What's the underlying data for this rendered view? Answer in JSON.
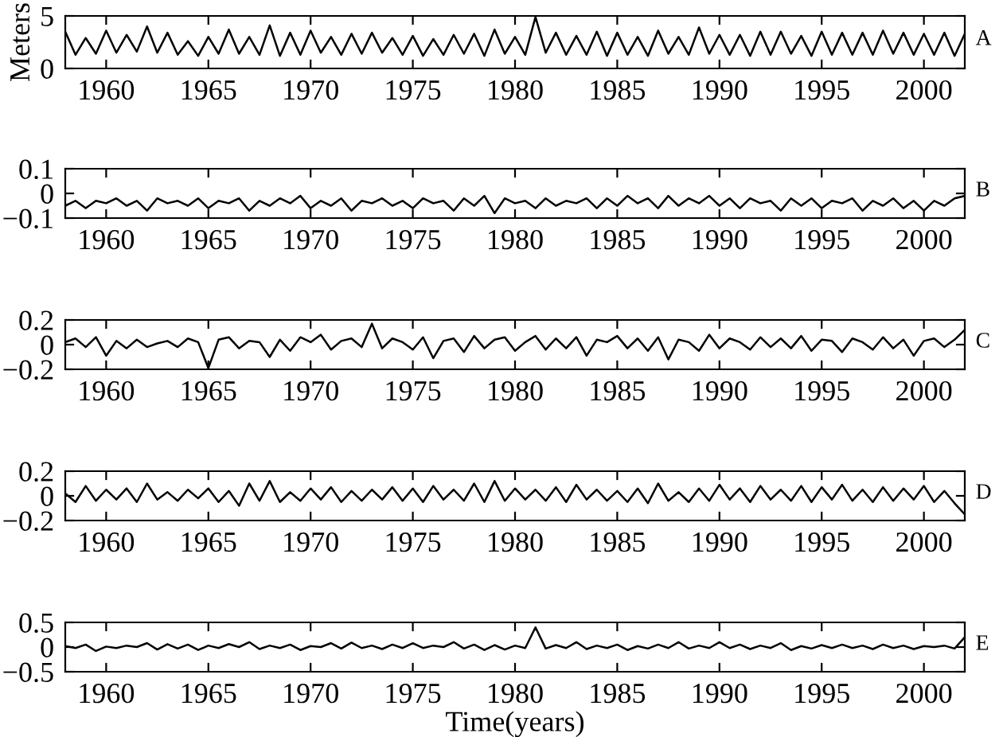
{
  "chart_data": [
    {
      "type": "line",
      "ylabel": "Meters",
      "annotations": [
        "A"
      ],
      "xlim": [
        1958,
        2002
      ],
      "xticks": [
        1960,
        1965,
        1970,
        1975,
        1980,
        1985,
        1990,
        1995,
        2000
      ],
      "ylim": [
        0,
        5
      ],
      "yticks": [
        0,
        5
      ],
      "grid": false,
      "legend": false,
      "x": [
        1958,
        1958.5,
        1959,
        1959.5,
        1960,
        1960.5,
        1961,
        1961.5,
        1962,
        1962.5,
        1963,
        1963.5,
        1964,
        1964.5,
        1965,
        1965.5,
        1966,
        1966.5,
        1967,
        1967.5,
        1968,
        1968.5,
        1969,
        1969.5,
        1970,
        1970.5,
        1971,
        1971.5,
        1972,
        1972.5,
        1973,
        1973.5,
        1974,
        1974.5,
        1975,
        1975.5,
        1976,
        1976.5,
        1977,
        1977.5,
        1978,
        1978.5,
        1979,
        1979.5,
        1980,
        1980.5,
        1981,
        1981.5,
        1982,
        1982.5,
        1983,
        1983.5,
        1984,
        1984.5,
        1985,
        1985.5,
        1986,
        1986.5,
        1987,
        1987.5,
        1988,
        1988.5,
        1989,
        1989.5,
        1990,
        1990.5,
        1991,
        1991.5,
        1992,
        1992.5,
        1993,
        1993.5,
        1994,
        1994.5,
        1995,
        1995.5,
        1996,
        1996.5,
        1997,
        1997.5,
        1998,
        1998.5,
        1999,
        1999.5,
        2000,
        2000.5,
        2001,
        2001.5,
        2002
      ],
      "series": [
        {
          "color": "#000000",
          "values": [
            3.5,
            1.3,
            2.9,
            1.4,
            3.6,
            1.5,
            3.2,
            1.6,
            4.0,
            1.5,
            3.4,
            1.3,
            2.6,
            1.2,
            3.0,
            1.4,
            3.7,
            1.4,
            3.0,
            1.3,
            4.1,
            1.2,
            3.4,
            1.3,
            3.6,
            1.5,
            3.0,
            1.3,
            3.3,
            1.4,
            3.4,
            1.5,
            2.9,
            1.3,
            3.1,
            1.2,
            2.8,
            1.3,
            3.2,
            1.4,
            3.3,
            1.2,
            3.7,
            1.4,
            3.0,
            1.3,
            4.9,
            1.5,
            3.4,
            1.3,
            3.1,
            1.3,
            3.5,
            1.2,
            3.4,
            1.3,
            3.0,
            1.2,
            3.6,
            1.4,
            3.0,
            1.3,
            3.9,
            1.4,
            3.2,
            1.3,
            3.2,
            1.2,
            3.5,
            1.3,
            3.5,
            1.4,
            3.1,
            1.2,
            3.5,
            1.3,
            3.4,
            1.3,
            3.4,
            1.3,
            3.6,
            1.4,
            3.4,
            1.3,
            3.3,
            1.3,
            3.4,
            1.2,
            3.3
          ]
        }
      ]
    },
    {
      "type": "line",
      "annotations": [
        "B"
      ],
      "xlim": [
        1958,
        2002
      ],
      "xticks": [
        1960,
        1965,
        1970,
        1975,
        1980,
        1985,
        1990,
        1995,
        2000
      ],
      "ylim": [
        -0.1,
        0.1
      ],
      "yticks": [
        {
          "value": -0.1,
          "label": "−0.1"
        },
        0,
        0.1
      ],
      "grid": false,
      "legend": false,
      "x": [
        1958,
        1958.5,
        1959,
        1959.5,
        1960,
        1960.5,
        1961,
        1961.5,
        1962,
        1962.5,
        1963,
        1963.5,
        1964,
        1964.5,
        1965,
        1965.5,
        1966,
        1966.5,
        1967,
        1967.5,
        1968,
        1968.5,
        1969,
        1969.5,
        1970,
        1970.5,
        1971,
        1971.5,
        1972,
        1972.5,
        1973,
        1973.5,
        1974,
        1974.5,
        1975,
        1975.5,
        1976,
        1976.5,
        1977,
        1977.5,
        1978,
        1978.5,
        1979,
        1979.5,
        1980,
        1980.5,
        1981,
        1981.5,
        1982,
        1982.5,
        1983,
        1983.5,
        1984,
        1984.5,
        1985,
        1985.5,
        1986,
        1986.5,
        1987,
        1987.5,
        1988,
        1988.5,
        1989,
        1989.5,
        1990,
        1990.5,
        1991,
        1991.5,
        1992,
        1992.5,
        1993,
        1993.5,
        1994,
        1994.5,
        1995,
        1995.5,
        1996,
        1996.5,
        1997,
        1997.5,
        1998,
        1998.5,
        1999,
        1999.5,
        2000,
        2000.5,
        2001,
        2001.5,
        2002
      ],
      "series": [
        {
          "color": "#000000",
          "values": [
            -0.05,
            -0.03,
            -0.06,
            -0.03,
            -0.04,
            -0.02,
            -0.05,
            -0.03,
            -0.07,
            -0.02,
            -0.04,
            -0.03,
            -0.05,
            -0.02,
            -0.06,
            -0.03,
            -0.04,
            -0.02,
            -0.07,
            -0.03,
            -0.05,
            -0.02,
            -0.04,
            -0.01,
            -0.06,
            -0.03,
            -0.05,
            -0.02,
            -0.07,
            -0.03,
            -0.04,
            -0.02,
            -0.05,
            -0.03,
            -0.06,
            -0.02,
            -0.04,
            -0.03,
            -0.07,
            -0.02,
            -0.05,
            -0.01,
            -0.08,
            -0.02,
            -0.04,
            -0.03,
            -0.06,
            -0.02,
            -0.05,
            -0.03,
            -0.04,
            -0.02,
            -0.06,
            -0.02,
            -0.05,
            -0.01,
            -0.04,
            -0.02,
            -0.06,
            -0.01,
            -0.05,
            -0.02,
            -0.04,
            -0.01,
            -0.05,
            -0.02,
            -0.06,
            -0.02,
            -0.04,
            -0.03,
            -0.07,
            -0.02,
            -0.05,
            -0.02,
            -0.06,
            -0.03,
            -0.04,
            -0.02,
            -0.07,
            -0.03,
            -0.05,
            -0.02,
            -0.06,
            -0.03,
            -0.07,
            -0.03,
            -0.05,
            -0.02,
            -0.01
          ]
        }
      ]
    },
    {
      "type": "line",
      "annotations": [
        "C"
      ],
      "xlim": [
        1958,
        2002
      ],
      "xticks": [
        1960,
        1965,
        1970,
        1975,
        1980,
        1985,
        1990,
        1995,
        2000
      ],
      "ylim": [
        -0.2,
        0.2
      ],
      "yticks": [
        {
          "value": -0.2,
          "label": "−0.2"
        },
        0,
        0.2
      ],
      "grid": false,
      "legend": false,
      "x": [
        1958,
        1958.5,
        1959,
        1959.5,
        1960,
        1960.5,
        1961,
        1961.5,
        1962,
        1962.5,
        1963,
        1963.5,
        1964,
        1964.5,
        1965,
        1965.5,
        1966,
        1966.5,
        1967,
        1967.5,
        1968,
        1968.5,
        1969,
        1969.5,
        1970,
        1970.5,
        1971,
        1971.5,
        1972,
        1972.5,
        1973,
        1973.5,
        1974,
        1974.5,
        1975,
        1975.5,
        1976,
        1976.5,
        1977,
        1977.5,
        1978,
        1978.5,
        1979,
        1979.5,
        1980,
        1980.5,
        1981,
        1981.5,
        1982,
        1982.5,
        1983,
        1983.5,
        1984,
        1984.5,
        1985,
        1985.5,
        1986,
        1986.5,
        1987,
        1987.5,
        1988,
        1988.5,
        1989,
        1989.5,
        1990,
        1990.5,
        1991,
        1991.5,
        1992,
        1992.5,
        1993,
        1993.5,
        1994,
        1994.5,
        1995,
        1995.5,
        1996,
        1996.5,
        1997,
        1997.5,
        1998,
        1998.5,
        1999,
        1999.5,
        2000,
        2000.5,
        2001,
        2001.5,
        2002
      ],
      "series": [
        {
          "color": "#000000",
          "values": [
            0.02,
            0.05,
            -0.02,
            0.06,
            -0.09,
            0.03,
            -0.03,
            0.04,
            -0.02,
            0.01,
            0.03,
            -0.02,
            0.05,
            0.02,
            -0.19,
            0.04,
            0.06,
            -0.03,
            0.03,
            0.02,
            -0.1,
            0.04,
            -0.05,
            0.06,
            0.02,
            0.08,
            -0.04,
            0.03,
            0.05,
            -0.02,
            0.17,
            -0.03,
            0.05,
            0.02,
            -0.04,
            0.06,
            -0.11,
            0.03,
            0.05,
            -0.06,
            0.07,
            -0.03,
            0.04,
            0.06,
            -0.05,
            0.02,
            0.07,
            -0.04,
            0.05,
            -0.03,
            0.06,
            -0.09,
            0.04,
            0.02,
            0.07,
            -0.03,
            0.05,
            -0.05,
            0.06,
            -0.12,
            0.04,
            0.02,
            -0.05,
            0.08,
            -0.03,
            0.05,
            0.02,
            -0.04,
            0.06,
            -0.02,
            0.05,
            -0.03,
            0.07,
            -0.05,
            0.04,
            0.03,
            -0.06,
            0.05,
            0.02,
            -0.04,
            0.06,
            -0.03,
            0.04,
            -0.09,
            0.03,
            0.05,
            -0.02,
            0.04,
            0.12
          ]
        }
      ]
    },
    {
      "type": "line",
      "annotations": [
        "D"
      ],
      "xlim": [
        1958,
        2002
      ],
      "xticks": [
        1960,
        1965,
        1970,
        1975,
        1980,
        1985,
        1990,
        1995,
        2000
      ],
      "ylim": [
        -0.2,
        0.2
      ],
      "yticks": [
        {
          "value": -0.2,
          "label": "−0.2"
        },
        0,
        0.2
      ],
      "grid": false,
      "legend": false,
      "x": [
        1958,
        1958.5,
        1959,
        1959.5,
        1960,
        1960.5,
        1961,
        1961.5,
        1962,
        1962.5,
        1963,
        1963.5,
        1964,
        1964.5,
        1965,
        1965.5,
        1966,
        1966.5,
        1967,
        1967.5,
        1968,
        1968.5,
        1969,
        1969.5,
        1970,
        1970.5,
        1971,
        1971.5,
        1972,
        1972.5,
        1973,
        1973.5,
        1974,
        1974.5,
        1975,
        1975.5,
        1976,
        1976.5,
        1977,
        1977.5,
        1978,
        1978.5,
        1979,
        1979.5,
        1980,
        1980.5,
        1981,
        1981.5,
        1982,
        1982.5,
        1983,
        1983.5,
        1984,
        1984.5,
        1985,
        1985.5,
        1986,
        1986.5,
        1987,
        1987.5,
        1988,
        1988.5,
        1989,
        1989.5,
        1990,
        1990.5,
        1991,
        1991.5,
        1992,
        1992.5,
        1993,
        1993.5,
        1994,
        1994.5,
        1995,
        1995.5,
        1996,
        1996.5,
        1997,
        1997.5,
        1998,
        1998.5,
        1999,
        1999.5,
        2000,
        2000.5,
        2001,
        2001.5,
        2002
      ],
      "series": [
        {
          "color": "#000000",
          "values": [
            0.02,
            -0.05,
            0.08,
            -0.04,
            0.05,
            -0.03,
            0.06,
            -0.05,
            0.1,
            -0.03,
            0.03,
            -0.04,
            0.05,
            -0.02,
            0.06,
            -0.05,
            0.04,
            -0.08,
            0.1,
            -0.04,
            0.12,
            -0.05,
            0.03,
            -0.04,
            0.06,
            -0.03,
            0.07,
            -0.05,
            0.04,
            -0.04,
            0.05,
            -0.03,
            0.07,
            -0.04,
            0.06,
            -0.05,
            0.08,
            -0.03,
            0.05,
            -0.04,
            0.1,
            -0.05,
            0.12,
            -0.04,
            0.06,
            -0.03,
            0.05,
            -0.04,
            0.07,
            -0.05,
            0.09,
            -0.03,
            0.05,
            -0.04,
            0.04,
            -0.05,
            0.06,
            -0.06,
            0.1,
            -0.04,
            0.03,
            -0.05,
            0.06,
            -0.04,
            0.09,
            -0.03,
            0.06,
            -0.05,
            0.08,
            -0.03,
            0.05,
            -0.04,
            0.08,
            -0.05,
            0.07,
            -0.03,
            0.09,
            -0.04,
            0.05,
            -0.05,
            0.07,
            -0.04,
            0.06,
            -0.03,
            0.08,
            -0.05,
            0.04,
            -0.06,
            -0.15
          ]
        }
      ]
    },
    {
      "type": "line",
      "xlabel": "Time(years)",
      "annotations": [
        "E"
      ],
      "xlim": [
        1958,
        2002
      ],
      "xticks": [
        1960,
        1965,
        1970,
        1975,
        1980,
        1985,
        1990,
        1995,
        2000
      ],
      "ylim": [
        -0.5,
        0.5
      ],
      "yticks": [
        {
          "value": -0.5,
          "label": "−0.5"
        },
        0,
        0.5
      ],
      "grid": false,
      "legend": false,
      "x": [
        1958,
        1958.5,
        1959,
        1959.5,
        1960,
        1960.5,
        1961,
        1961.5,
        1962,
        1962.5,
        1963,
        1963.5,
        1964,
        1964.5,
        1965,
        1965.5,
        1966,
        1966.5,
        1967,
        1967.5,
        1968,
        1968.5,
        1969,
        1969.5,
        1970,
        1970.5,
        1971,
        1971.5,
        1972,
        1972.5,
        1973,
        1973.5,
        1974,
        1974.5,
        1975,
        1975.5,
        1976,
        1976.5,
        1977,
        1977.5,
        1978,
        1978.5,
        1979,
        1979.5,
        1980,
        1980.5,
        1981,
        1981.5,
        1982,
        1982.5,
        1983,
        1983.5,
        1984,
        1984.5,
        1985,
        1985.5,
        1986,
        1986.5,
        1987,
        1987.5,
        1988,
        1988.5,
        1989,
        1989.5,
        1990,
        1990.5,
        1991,
        1991.5,
        1992,
        1992.5,
        1993,
        1993.5,
        1994,
        1994.5,
        1995,
        1995.5,
        1996,
        1996.5,
        1997,
        1997.5,
        1998,
        1998.5,
        1999,
        1999.5,
        2000,
        2000.5,
        2001,
        2001.5,
        2002
      ],
      "series": [
        {
          "color": "#000000",
          "values": [
            0.02,
            -0.02,
            0.05,
            -0.08,
            0.01,
            -0.02,
            0.03,
            0.0,
            0.08,
            -0.05,
            0.06,
            -0.03,
            0.05,
            -0.06,
            0.03,
            -0.02,
            0.06,
            0.0,
            0.1,
            -0.04,
            0.03,
            -0.02,
            0.05,
            -0.06,
            0.02,
            0.0,
            0.08,
            -0.03,
            0.09,
            -0.02,
            0.03,
            -0.04,
            0.05,
            -0.02,
            0.08,
            -0.02,
            0.03,
            0.0,
            0.1,
            -0.03,
            0.05,
            -0.06,
            0.04,
            -0.05,
            0.03,
            -0.02,
            0.4,
            -0.03,
            0.04,
            -0.02,
            0.1,
            -0.04,
            0.03,
            -0.02,
            0.05,
            -0.06,
            0.02,
            -0.03,
            0.05,
            -0.02,
            0.1,
            -0.03,
            0.03,
            -0.02,
            0.1,
            -0.02,
            0.05,
            -0.04,
            0.03,
            -0.02,
            0.08,
            -0.06,
            0.02,
            -0.03,
            0.04,
            -0.02,
            0.05,
            -0.02,
            0.03,
            -0.04,
            0.05,
            -0.02,
            0.03,
            -0.04,
            0.02,
            0.0,
            0.03,
            -0.03,
            0.2
          ]
        }
      ]
    }
  ]
}
